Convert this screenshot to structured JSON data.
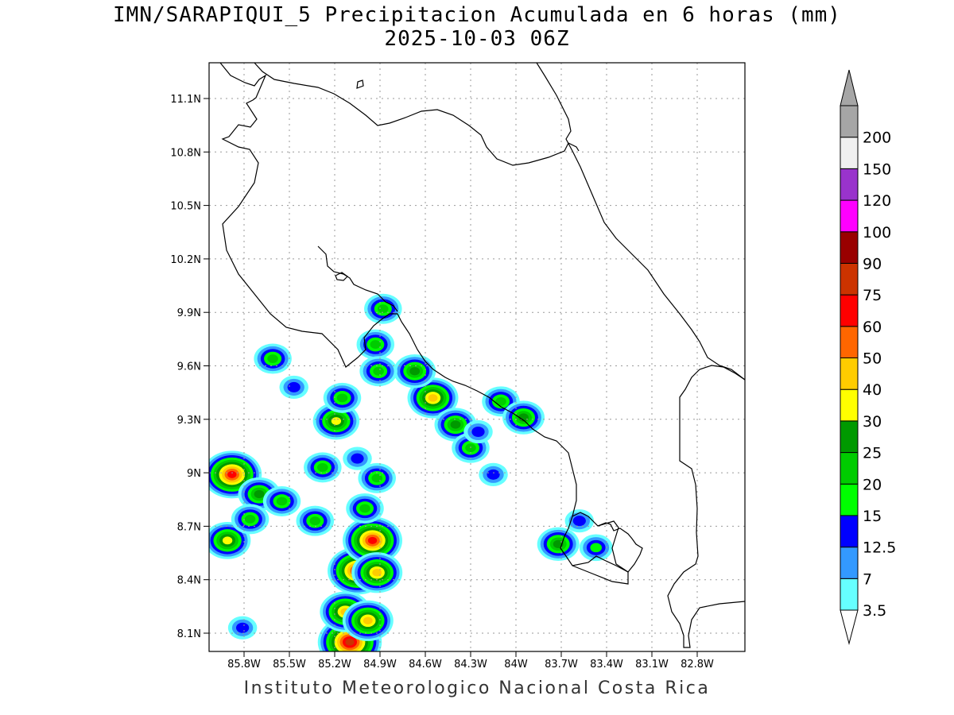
{
  "title": {
    "line1": "IMN/SARAPIQUI_5 Precipitacion Acumulada en 6 horas (mm)",
    "line2": "2025-10-03 06Z"
  },
  "credit": "Instituto Meteorologico Nacional Costa Rica",
  "axes": {
    "lat_ticks": [
      "11.1N",
      "10.8N",
      "10.5N",
      "10.2N",
      "9.9N",
      "9.6N",
      "9.3N",
      "9N",
      "8.7N",
      "8.4N",
      "8.1N"
    ],
    "lon_ticks": [
      "85.8W",
      "85.5W",
      "85.2W",
      "84.9W",
      "84.6W",
      "84.3W",
      "84W",
      "83.7W",
      "83.4W",
      "83.1W",
      "82.8W"
    ]
  },
  "colorbar": {
    "unit": "mm",
    "levels": [
      {
        "label": "3.5",
        "color": "#66ffff"
      },
      {
        "label": "7",
        "color": "#3399ff"
      },
      {
        "label": "12.5",
        "color": "#0000ff"
      },
      {
        "label": "15",
        "color": "#00ff00"
      },
      {
        "label": "20",
        "color": "#00cc00"
      },
      {
        "label": "25",
        "color": "#009900"
      },
      {
        "label": "30",
        "color": "#ffff00"
      },
      {
        "label": "40",
        "color": "#ffcc00"
      },
      {
        "label": "50",
        "color": "#ff6600"
      },
      {
        "label": "60",
        "color": "#ff0000"
      },
      {
        "label": "75",
        "color": "#cc3300"
      },
      {
        "label": "90",
        "color": "#990000"
      },
      {
        "label": "100",
        "color": "#ff00ff"
      },
      {
        "label": "120",
        "color": "#9933cc"
      },
      {
        "label": "150",
        "color": "#f0f0f0"
      },
      {
        "label": "200",
        "color": "#a6a6a6"
      }
    ],
    "low_arrow_color": "#ffffff",
    "high_arrow_color": "#a6a6a6"
  },
  "precip_cells": [
    {
      "lon": -85.05,
      "lat": 8.45,
      "peak_mm": 60
    },
    {
      "lon": -84.95,
      "lat": 8.62,
      "peak_mm": 60
    },
    {
      "lon": -85.1,
      "lat": 8.05,
      "peak_mm": 75
    },
    {
      "lon": -85.13,
      "lat": 8.22,
      "peak_mm": 40
    },
    {
      "lon": -84.98,
      "lat": 8.17,
      "peak_mm": 40
    },
    {
      "lon": -84.92,
      "lat": 8.44,
      "peak_mm": 40
    },
    {
      "lon": -85.88,
      "lat": 8.99,
      "peak_mm": 60
    },
    {
      "lon": -85.91,
      "lat": 8.62,
      "peak_mm": 30
    },
    {
      "lon": -85.7,
      "lat": 8.88,
      "peak_mm": 25
    },
    {
      "lon": -85.76,
      "lat": 8.74,
      "peak_mm": 20
    },
    {
      "lon": -85.55,
      "lat": 8.84,
      "peak_mm": 20
    },
    {
      "lon": -85.33,
      "lat": 8.73,
      "peak_mm": 20
    },
    {
      "lon": -85.28,
      "lat": 9.03,
      "peak_mm": 20
    },
    {
      "lon": -84.92,
      "lat": 8.97,
      "peak_mm": 20
    },
    {
      "lon": -85.0,
      "lat": 8.8,
      "peak_mm": 20
    },
    {
      "lon": -85.05,
      "lat": 9.08,
      "peak_mm": 12.5
    },
    {
      "lon": -85.19,
      "lat": 9.29,
      "peak_mm": 30
    },
    {
      "lon": -85.15,
      "lat": 9.42,
      "peak_mm": 20
    },
    {
      "lon": -85.47,
      "lat": 9.48,
      "peak_mm": 12.5
    },
    {
      "lon": -84.55,
      "lat": 9.42,
      "peak_mm": 40
    },
    {
      "lon": -84.67,
      "lat": 9.57,
      "peak_mm": 25
    },
    {
      "lon": -84.4,
      "lat": 9.27,
      "peak_mm": 25
    },
    {
      "lon": -84.1,
      "lat": 9.4,
      "peak_mm": 20
    },
    {
      "lon": -83.95,
      "lat": 9.31,
      "peak_mm": 25
    },
    {
      "lon": -84.93,
      "lat": 9.72,
      "peak_mm": 20
    },
    {
      "lon": -84.91,
      "lat": 9.57,
      "peak_mm": 20
    },
    {
      "lon": -85.61,
      "lat": 9.64,
      "peak_mm": 20
    },
    {
      "lon": -84.88,
      "lat": 9.92,
      "peak_mm": 20
    },
    {
      "lon": -84.3,
      "lat": 9.14,
      "peak_mm": 20
    },
    {
      "lon": -84.25,
      "lat": 9.23,
      "peak_mm": 12.5
    },
    {
      "lon": -84.15,
      "lat": 8.99,
      "peak_mm": 12.5
    },
    {
      "lon": -83.72,
      "lat": 8.6,
      "peak_mm": 25
    },
    {
      "lon": -83.47,
      "lat": 8.58,
      "peak_mm": 15
    },
    {
      "lon": -83.58,
      "lat": 8.73,
      "peak_mm": 12.5
    },
    {
      "lon": -85.81,
      "lat": 8.13,
      "peak_mm": 12.5
    }
  ]
}
